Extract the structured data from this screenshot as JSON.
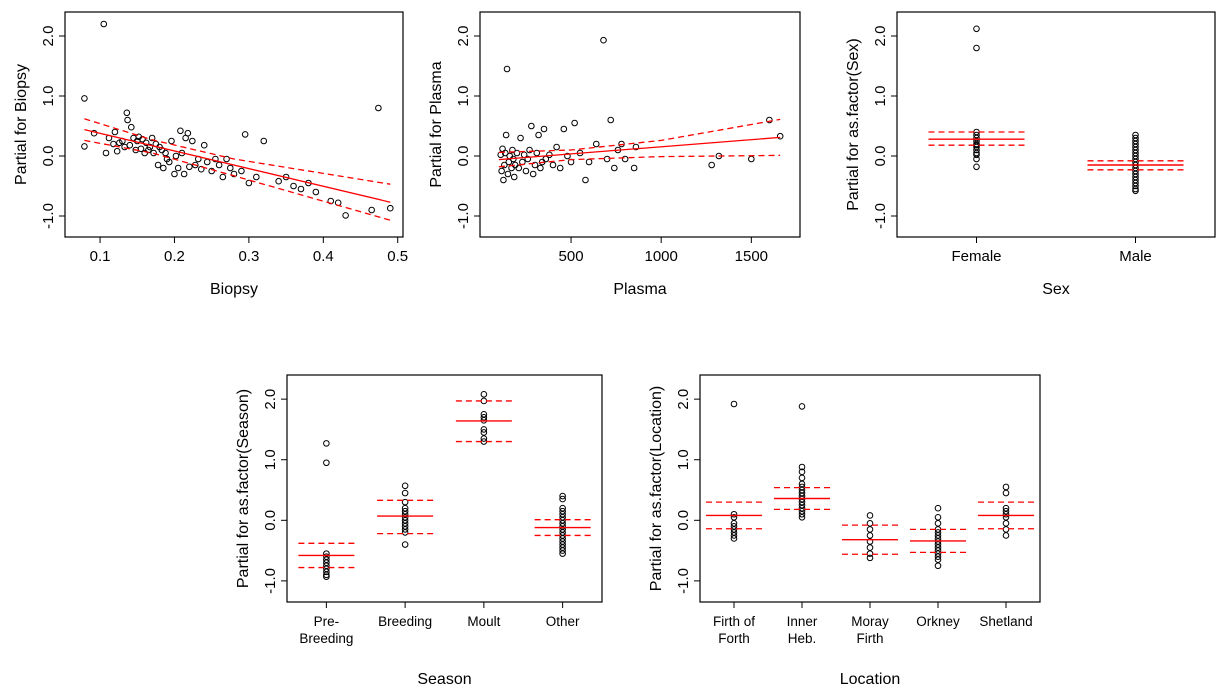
{
  "chart_data": [
    {
      "type": "scatter",
      "xlabel": "Biopsy",
      "ylabel": "Partial for Biopsy",
      "xlim": [
        0.065,
        0.495
      ],
      "ylim": [
        -1.2,
        2.25
      ],
      "xticks": [
        0.1,
        0.2,
        0.3,
        0.4,
        0.5
      ],
      "xtick_labels": [
        "0.1",
        "0.2",
        "0.3",
        "0.4",
        "0.5"
      ],
      "yticks": [
        -1.0,
        0.0,
        1.0,
        2.0
      ],
      "ytick_labels": [
        "-1.0",
        "0.0",
        "1.0",
        "2.0"
      ],
      "points": [
        [
          0.079,
          0.96
        ],
        [
          0.079,
          0.16
        ],
        [
          0.092,
          0.38
        ],
        [
          0.105,
          2.2
        ],
        [
          0.108,
          0.05
        ],
        [
          0.112,
          0.3
        ],
        [
          0.118,
          0.2
        ],
        [
          0.12,
          0.4
        ],
        [
          0.123,
          0.08
        ],
        [
          0.126,
          0.22
        ],
        [
          0.13,
          0.25
        ],
        [
          0.133,
          0.15
        ],
        [
          0.136,
          0.72
        ],
        [
          0.137,
          0.6
        ],
        [
          0.14,
          0.18
        ],
        [
          0.142,
          0.48
        ],
        [
          0.145,
          0.3
        ],
        [
          0.148,
          0.1
        ],
        [
          0.15,
          0.25
        ],
        [
          0.152,
          0.32
        ],
        [
          0.155,
          0.12
        ],
        [
          0.157,
          0.28
        ],
        [
          0.16,
          0.05
        ],
        [
          0.162,
          0.22
        ],
        [
          0.165,
          0.1
        ],
        [
          0.167,
          0.15
        ],
        [
          0.17,
          0.3
        ],
        [
          0.172,
          0.05
        ],
        [
          0.175,
          0.2
        ],
        [
          0.178,
          -0.15
        ],
        [
          0.18,
          0.15
        ],
        [
          0.183,
          0.1
        ],
        [
          0.185,
          -0.2
        ],
        [
          0.188,
          0.05
        ],
        [
          0.19,
          -0.05
        ],
        [
          0.193,
          -0.1
        ],
        [
          0.196,
          0.25
        ],
        [
          0.2,
          -0.3
        ],
        [
          0.202,
          0.0
        ],
        [
          0.205,
          -0.2
        ],
        [
          0.208,
          0.42
        ],
        [
          0.21,
          0.05
        ],
        [
          0.213,
          -0.3
        ],
        [
          0.215,
          0.3
        ],
        [
          0.218,
          0.38
        ],
        [
          0.22,
          -0.18
        ],
        [
          0.224,
          0.25
        ],
        [
          0.228,
          -0.15
        ],
        [
          0.232,
          -0.05
        ],
        [
          0.236,
          -0.22
        ],
        [
          0.24,
          0.18
        ],
        [
          0.244,
          -0.1
        ],
        [
          0.25,
          -0.25
        ],
        [
          0.255,
          -0.05
        ],
        [
          0.26,
          -0.15
        ],
        [
          0.265,
          -0.35
        ],
        [
          0.27,
          -0.05
        ],
        [
          0.275,
          -0.2
        ],
        [
          0.28,
          -0.3
        ],
        [
          0.29,
          -0.25
        ],
        [
          0.295,
          0.36
        ],
        [
          0.3,
          -0.45
        ],
        [
          0.31,
          -0.35
        ],
        [
          0.32,
          0.25
        ],
        [
          0.34,
          -0.42
        ],
        [
          0.35,
          -0.35
        ],
        [
          0.36,
          -0.5
        ],
        [
          0.37,
          -0.55
        ],
        [
          0.38,
          -0.45
        ],
        [
          0.39,
          -0.6
        ],
        [
          0.41,
          -0.75
        ],
        [
          0.42,
          -0.78
        ],
        [
          0.43,
          -0.99
        ],
        [
          0.465,
          -0.9
        ],
        [
          0.474,
          0.8
        ],
        [
          0.49,
          -0.87
        ]
      ],
      "fit_line": {
        "x": [
          0.079,
          0.49
        ],
        "y": [
          0.44,
          -0.77
        ]
      },
      "ci_upper": {
        "x": [
          0.079,
          0.17,
          0.28,
          0.49
        ],
        "y": [
          0.62,
          0.27,
          -0.05,
          -0.47
        ]
      },
      "ci_lower": {
        "x": [
          0.079,
          0.17,
          0.28,
          0.49
        ],
        "y": [
          0.26,
          0.05,
          -0.33,
          -1.07
        ]
      }
    },
    {
      "type": "scatter",
      "xlabel": "Plasma",
      "ylabel": "Partial for Plasma",
      "xlim": [
        45,
        1720
      ],
      "ylim": [
        -1.2,
        2.25
      ],
      "xticks": [
        500,
        1000,
        1500
      ],
      "xtick_labels": [
        "500",
        "1000",
        "1500"
      ],
      "yticks": [
        -1.0,
        0.0,
        1.0,
        2.0
      ],
      "ytick_labels": [
        "-1.0",
        "0.0",
        "1.0",
        "2.0"
      ],
      "points": [
        [
          110,
          0.02
        ],
        [
          115,
          -0.25
        ],
        [
          120,
          0.12
        ],
        [
          125,
          -0.4
        ],
        [
          130,
          -0.15
        ],
        [
          135,
          0.05
        ],
        [
          140,
          0.35
        ],
        [
          145,
          1.45
        ],
        [
          150,
          -0.3
        ],
        [
          155,
          -0.1
        ],
        [
          160,
          0.0
        ],
        [
          170,
          -0.2
        ],
        [
          175,
          0.1
        ],
        [
          180,
          -0.05
        ],
        [
          185,
          -0.35
        ],
        [
          190,
          -0.15
        ],
        [
          200,
          0.05
        ],
        [
          210,
          -0.2
        ],
        [
          220,
          0.3
        ],
        [
          230,
          -0.1
        ],
        [
          240,
          0.02
        ],
        [
          250,
          -0.25
        ],
        [
          260,
          -0.05
        ],
        [
          270,
          0.1
        ],
        [
          280,
          0.5
        ],
        [
          290,
          -0.3
        ],
        [
          300,
          -0.15
        ],
        [
          310,
          0.05
        ],
        [
          320,
          0.35
        ],
        [
          330,
          -0.2
        ],
        [
          340,
          -0.1
        ],
        [
          350,
          0.45
        ],
        [
          360,
          -0.05
        ],
        [
          380,
          0.02
        ],
        [
          400,
          -0.15
        ],
        [
          420,
          0.15
        ],
        [
          440,
          -0.2
        ],
        [
          460,
          0.45
        ],
        [
          480,
          0.0
        ],
        [
          500,
          -0.1
        ],
        [
          520,
          0.55
        ],
        [
          550,
          0.05
        ],
        [
          580,
          -0.4
        ],
        [
          600,
          -0.1
        ],
        [
          640,
          0.2
        ],
        [
          680,
          1.93
        ],
        [
          700,
          -0.05
        ],
        [
          720,
          0.6
        ],
        [
          740,
          -0.2
        ],
        [
          760,
          0.1
        ],
        [
          780,
          0.2
        ],
        [
          800,
          -0.05
        ],
        [
          850,
          -0.2
        ],
        [
          860,
          0.15
        ],
        [
          1280,
          -0.15
        ],
        [
          1320,
          0.0
        ],
        [
          1500,
          -0.05
        ],
        [
          1600,
          0.6
        ],
        [
          1660,
          0.33
        ]
      ],
      "fit_line": {
        "x": [
          100,
          1660
        ],
        "y": [
          -0.06,
          0.31
        ]
      },
      "ci_upper": {
        "x": [
          100,
          500,
          1000,
          1660
        ],
        "y": [
          0.06,
          0.1,
          0.26,
          0.61
        ]
      },
      "ci_lower": {
        "x": [
          100,
          500,
          1000,
          1660
        ],
        "y": [
          -0.18,
          -0.06,
          -0.01,
          0.01
        ]
      }
    },
    {
      "type": "scatter",
      "xlabel": "Sex",
      "ylabel": "Partial for as.factor(Sex)",
      "categories": [
        "Female",
        "Male"
      ],
      "ylim": [
        -1.2,
        2.25
      ],
      "yticks": [
        -1.0,
        0.0,
        1.0,
        2.0
      ],
      "ytick_labels": [
        "-1.0",
        "0.0",
        "1.0",
        "2.0"
      ],
      "groups": [
        {
          "category": "Female",
          "fit": 0.28,
          "ci": [
            0.18,
            0.4
          ],
          "points": [
            2.12,
            1.8,
            0.4,
            0.35,
            0.3,
            0.25,
            0.2,
            0.18,
            0.15,
            0.1,
            0.05,
            0.02,
            -0.05,
            -0.18
          ]
        },
        {
          "category": "Male",
          "fit": -0.15,
          "ci": [
            -0.23,
            -0.08
          ],
          "points": [
            0.35,
            0.3,
            0.25,
            0.2,
            0.15,
            0.1,
            0.05,
            0.0,
            -0.05,
            -0.1,
            -0.15,
            -0.2,
            -0.25,
            -0.3,
            -0.35,
            -0.4,
            -0.45,
            -0.5,
            -0.55,
            -0.58
          ]
        }
      ]
    },
    {
      "type": "scatter",
      "xlabel": "Season",
      "ylabel": "Partial for as.factor(Season)",
      "categories": [
        "Pre-\nBreeding",
        "Breeding",
        "Moult",
        "Other"
      ],
      "ylim": [
        -1.2,
        2.25
      ],
      "yticks": [
        -1.0,
        0.0,
        1.0,
        2.0
      ],
      "ytick_labels": [
        "-1.0",
        "0.0",
        "1.0",
        "2.0"
      ],
      "groups": [
        {
          "category": "Pre-\nBreeding",
          "fit": -0.58,
          "ci": [
            -0.78,
            -0.38
          ],
          "points": [
            1.27,
            0.95,
            -0.55,
            -0.6,
            -0.65,
            -0.7,
            -0.75,
            -0.8,
            -0.85,
            -0.9,
            -0.93
          ]
        },
        {
          "category": "Breeding",
          "fit": 0.07,
          "ci": [
            -0.22,
            0.33
          ],
          "points": [
            0.57,
            0.45,
            0.3,
            0.2,
            0.15,
            0.1,
            0.05,
            0.0,
            -0.05,
            -0.1,
            -0.15,
            -0.2,
            -0.4
          ]
        },
        {
          "category": "Moult",
          "fit": 1.64,
          "ci": [
            1.3,
            1.97
          ],
          "points": [
            2.08,
            1.97,
            1.75,
            1.7,
            1.65,
            1.5,
            1.45,
            1.35,
            1.3
          ]
        },
        {
          "category": "Other",
          "fit": -0.12,
          "ci": [
            -0.25,
            0.01
          ],
          "points": [
            0.4,
            0.35,
            0.2,
            0.15,
            0.1,
            0.05,
            0.0,
            -0.05,
            -0.1,
            -0.15,
            -0.2,
            -0.25,
            -0.3,
            -0.35,
            -0.4,
            -0.45,
            -0.5,
            -0.55
          ]
        }
      ]
    },
    {
      "type": "scatter",
      "xlabel": "Location",
      "ylabel": "Partial for as.factor(Location)",
      "categories": [
        "Firth of\nForth",
        "Inner\nHeb.",
        "Moray\nFirth",
        "Orkney",
        "Shetland"
      ],
      "ylim": [
        -1.2,
        2.25
      ],
      "yticks": [
        -1.0,
        0.0,
        1.0,
        2.0
      ],
      "ytick_labels": [
        "-1.0",
        "0.0",
        "1.0",
        "2.0"
      ],
      "groups": [
        {
          "category": "Firth of\nForth",
          "fit": 0.08,
          "ci": [
            -0.14,
            0.3
          ],
          "points": [
            1.92,
            0.1,
            0.05,
            -0.05,
            -0.1,
            -0.15,
            -0.2,
            -0.25,
            -0.3
          ]
        },
        {
          "category": "Inner\nHeb.",
          "fit": 0.36,
          "ci": [
            0.18,
            0.54
          ],
          "points": [
            1.88,
            0.88,
            0.8,
            0.7,
            0.6,
            0.55,
            0.5,
            0.45,
            0.4,
            0.35,
            0.3,
            0.25,
            0.2,
            0.15,
            0.1,
            0.05
          ]
        },
        {
          "category": "Moray\nFirth",
          "fit": -0.32,
          "ci": [
            -0.56,
            -0.08
          ],
          "points": [
            0.08,
            -0.05,
            -0.15,
            -0.25,
            -0.35,
            -0.45,
            -0.55,
            -0.62
          ]
        },
        {
          "category": "Orkney",
          "fit": -0.34,
          "ci": [
            -0.53,
            -0.15
          ],
          "points": [
            0.2,
            0.05,
            -0.05,
            -0.15,
            -0.2,
            -0.25,
            -0.3,
            -0.35,
            -0.4,
            -0.45,
            -0.5,
            -0.55,
            -0.6,
            -0.65,
            -0.75
          ]
        },
        {
          "category": "Shetland",
          "fit": 0.08,
          "ci": [
            -0.14,
            0.3
          ],
          "points": [
            0.55,
            0.45,
            0.2,
            0.15,
            0.1,
            0.05,
            -0.05,
            -0.15,
            -0.25
          ]
        }
      ]
    }
  ],
  "colors": {
    "fit": "#ff0000",
    "points": "#000000",
    "axes": "#000000"
  }
}
